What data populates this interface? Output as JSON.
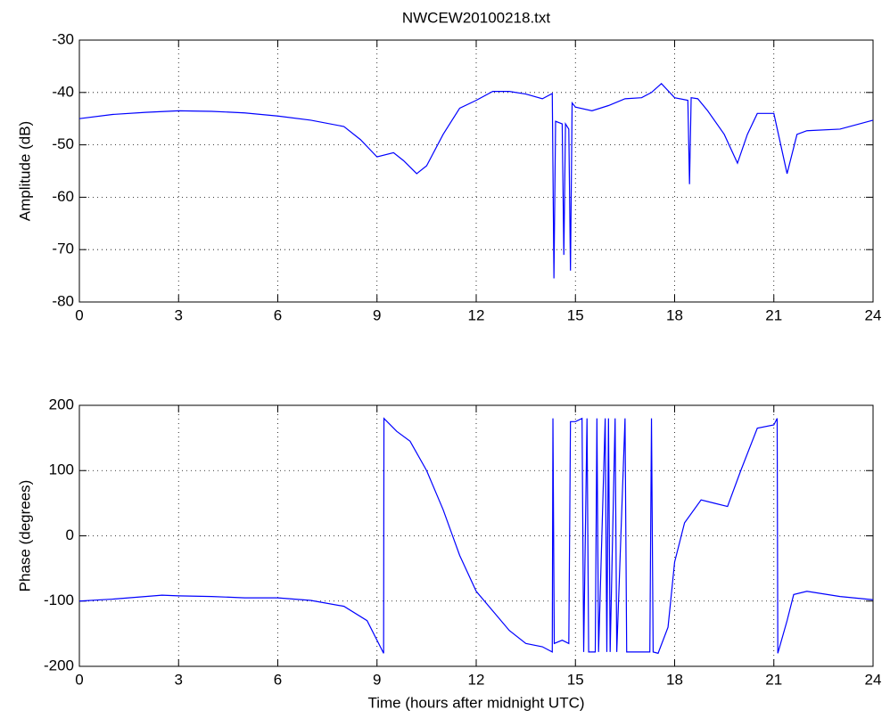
{
  "chart_data": [
    {
      "type": "line",
      "title": "NWCEW20100218.txt",
      "y_label": "Amplitude (dB)",
      "color": "#0000ff",
      "grid": true,
      "xlim": [
        0,
        24
      ],
      "xticks": [
        0,
        3,
        6,
        9,
        12,
        15,
        18,
        21,
        24
      ],
      "ylim": [
        -80,
        -30
      ],
      "yticks": [
        -80,
        -70,
        -60,
        -50,
        -40,
        -30
      ],
      "x": [
        0,
        1,
        2,
        3,
        4,
        5,
        6,
        7,
        8,
        8.5,
        9,
        9.5,
        9.8,
        10.2,
        10.5,
        11,
        11.5,
        12,
        12.5,
        13,
        13.5,
        14,
        14.3,
        14.35,
        14.4,
        14.6,
        14.65,
        14.7,
        14.8,
        14.85,
        14.9,
        15,
        15.5,
        16,
        16.5,
        17,
        17.3,
        17.6,
        18,
        18.4,
        18.45,
        18.5,
        18.7,
        19,
        19.5,
        19.9,
        20.2,
        20.5,
        21,
        21.4,
        21.7,
        22,
        23,
        24
      ],
      "values": [
        -45,
        -44.2,
        -43.8,
        -43.5,
        -43.6,
        -43.9,
        -44.5,
        -45.3,
        -46.5,
        -49,
        -52.3,
        -51.5,
        -53,
        -55.5,
        -54,
        -48,
        -43,
        -41.5,
        -39.8,
        -39.8,
        -40.3,
        -41.2,
        -40.2,
        -75.5,
        -45.5,
        -46,
        -71,
        -46,
        -47,
        -74,
        -42,
        -42.8,
        -43.5,
        -42.5,
        -41.2,
        -41,
        -40,
        -38.3,
        -41,
        -41.5,
        -57.5,
        -41,
        -41.2,
        -43.5,
        -48,
        -53.5,
        -48,
        -44,
        -44,
        -55.5,
        -48,
        -47.3,
        -47,
        -45.3
      ]
    },
    {
      "type": "line",
      "y_label": "Phase (degrees)",
      "x_label": "Time (hours after midnight UTC)",
      "color": "#0000ff",
      "grid": true,
      "xlim": [
        0,
        24
      ],
      "xticks": [
        0,
        3,
        6,
        9,
        12,
        15,
        18,
        21,
        24
      ],
      "ylim": [
        -200,
        200
      ],
      "yticks": [
        -200,
        -100,
        0,
        100,
        200
      ],
      "x": [
        0,
        1,
        2,
        2.5,
        3,
        4,
        5,
        6,
        7,
        8,
        8.7,
        9.2,
        9.21,
        9.6,
        10,
        10.5,
        11,
        11.5,
        12,
        12.5,
        13,
        13.5,
        14,
        14.3,
        14.32,
        14.36,
        14.6,
        14.8,
        14.85,
        15,
        15.2,
        15.25,
        15.35,
        15.4,
        15.6,
        15.65,
        15.7,
        15.9,
        15.95,
        16,
        16.05,
        16.2,
        16.25,
        16.5,
        16.55,
        17.25,
        17.3,
        17.35,
        17.5,
        17.8,
        18,
        18.3,
        18.8,
        19.2,
        19.6,
        20,
        20.5,
        21,
        21.1,
        21.12,
        21.4,
        21.6,
        22,
        23,
        24
      ],
      "values": [
        -100,
        -97,
        -93,
        -91,
        -92,
        -93,
        -95,
        -95,
        -99,
        -108,
        -130,
        -180,
        180,
        160,
        145,
        100,
        40,
        -30,
        -85,
        -115,
        -145,
        -165,
        -170,
        -178,
        180,
        -165,
        -160,
        -165,
        175,
        175,
        180,
        -178,
        180,
        -178,
        -178,
        180,
        -178,
        180,
        -178,
        180,
        -178,
        180,
        -178,
        180,
        -178,
        -178,
        180,
        -178,
        -180,
        -140,
        -40,
        20,
        55,
        50,
        45,
        100,
        165,
        170,
        180,
        -180,
        -130,
        -90,
        -85,
        -93,
        -98
      ]
    }
  ]
}
